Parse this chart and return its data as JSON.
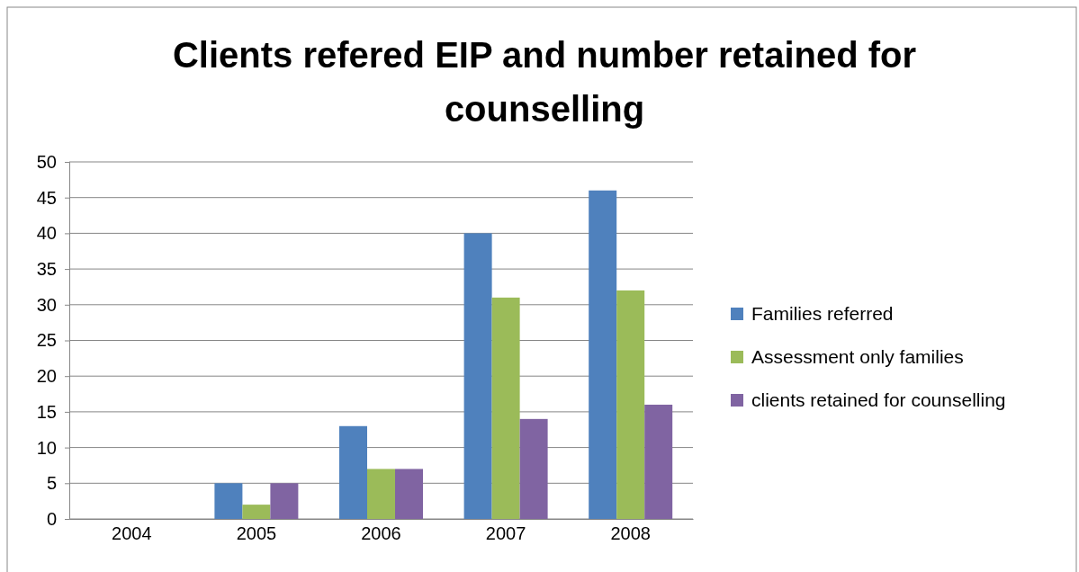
{
  "chart_data": {
    "type": "bar",
    "title": "Clients refered EIP and number retained for counselling",
    "categories": [
      "2004",
      "2005",
      "2006",
      "2007",
      "2008"
    ],
    "series": [
      {
        "name": "Families referred",
        "color": "#4f81bd",
        "values": [
          0,
          5,
          13,
          40,
          46
        ]
      },
      {
        "name": "Assessment only families",
        "color": "#9bbb59",
        "values": [
          0,
          2,
          7,
          31,
          32
        ]
      },
      {
        "name": "clients retained for counselling",
        "color": "#8064a2",
        "values": [
          0,
          5,
          7,
          14,
          16
        ]
      }
    ],
    "ylim": [
      0,
      50
    ],
    "yticks": [
      0,
      5,
      10,
      15,
      20,
      25,
      30,
      35,
      40,
      45,
      50
    ],
    "grid": "y",
    "legend": "right"
  }
}
